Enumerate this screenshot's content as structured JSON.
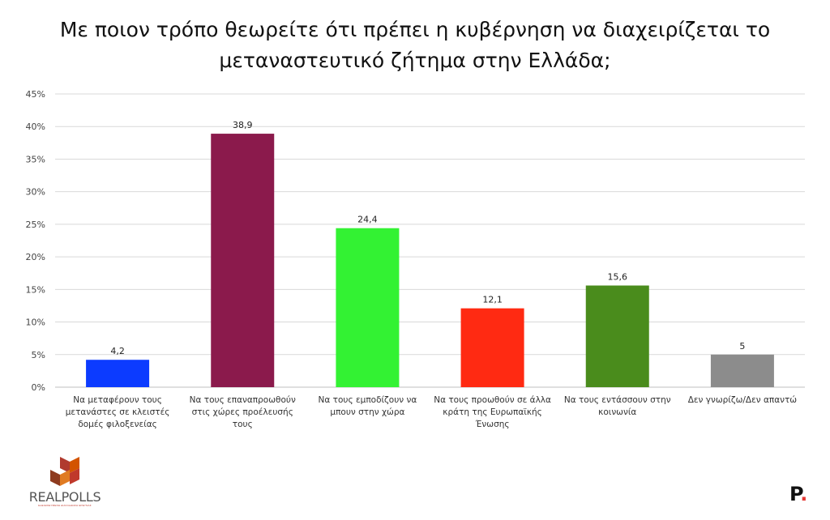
{
  "title_lines": [
    "Με ποιον τρόπο θεωρείτε ότι πρέπει η κυβέρνηση να διαχειρίζεται το",
    "μεταναστευτικό ζήτημα στην Ελλάδα;"
  ],
  "chart_data": {
    "type": "bar",
    "title": "Με ποιον τρόπο θεωρείτε ότι πρέπει η κυβέρνηση να διαχειρίζεται το μεταναστευτικό ζήτημα στην Ελλάδα;",
    "categories": [
      [
        "Να μεταφέρουν τους",
        "μετανάστες σε κλειστές",
        "δομές φιλοξενείας"
      ],
      [
        "Να τους επαναπροωθούν",
        "στις χώρες προέλευσής",
        "τους"
      ],
      [
        "Να τους εμποδίζουν να",
        "μπουν στην χώρα"
      ],
      [
        "Να τους προωθούν σε άλλα",
        "κράτη της Ευρωπαϊκής",
        "Ένωσης"
      ],
      [
        "Να τους εντάσσουν στην",
        "κοινωνία"
      ],
      [
        "Δεν γνωρίζω/Δεν απαντώ"
      ]
    ],
    "values": [
      4.2,
      38.9,
      24.4,
      12.1,
      15.6,
      5
    ],
    "value_labels": [
      "4,2",
      "38,9",
      "24,4",
      "12,1",
      "15,6",
      "5"
    ],
    "colors": [
      "#0c3bff",
      "#8b1a4c",
      "#33f233",
      "#ff2a12",
      "#4a8c1c",
      "#8c8c8c"
    ],
    "ylim": [
      0,
      45
    ],
    "yticks": [
      0,
      5,
      10,
      15,
      20,
      25,
      30,
      35,
      40,
      45
    ],
    "ytick_labels": [
      "0%",
      "5%",
      "10%",
      "15%",
      "20%",
      "25%",
      "30%",
      "35%",
      "40%",
      "45%"
    ],
    "grid": true,
    "legend": "none"
  },
  "logo": {
    "text": "REALPOLLS",
    "subtext": "ΕΞΕΙΔΙΚΕΥΜΕΝΗ ΔΙΑΚΛΑΔΩΣΗ ΕΡΕΥΝΑΣ",
    "colors": [
      "#b03a2e",
      "#e07b22",
      "#8e3b1f",
      "#d35400"
    ]
  },
  "brand": {
    "letter": "P",
    "dot": "."
  }
}
